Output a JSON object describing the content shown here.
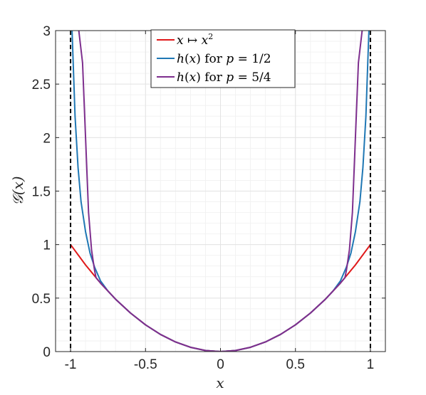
{
  "chart_data": {
    "type": "line",
    "xlabel": "x",
    "ylabel": "𝒢(x)",
    "xlim": [
      -1.1,
      1.1
    ],
    "ylim": [
      0,
      3
    ],
    "x_ticks": [
      -1,
      -0.5,
      0,
      0.5,
      1
    ],
    "x_tick_labels": [
      "-1",
      "-0.5",
      "0",
      "0.5",
      "1"
    ],
    "y_ticks": [
      0,
      0.5,
      1,
      1.5,
      2,
      2.5,
      3
    ],
    "y_tick_labels": [
      "0",
      "0.5",
      "1",
      "1.5",
      "2",
      "2.5",
      "3"
    ],
    "grid": true,
    "legend_position": "top-center",
    "vertical_lines": [
      {
        "x": -1,
        "style": "dashed",
        "color": "#000000"
      },
      {
        "x": 1,
        "style": "dashed",
        "color": "#000000"
      }
    ],
    "series": [
      {
        "name": "x ↦ x²",
        "legend_parts": [
          {
            "t": "x",
            "i": true
          },
          {
            "t": " ↦ ",
            "i": false
          },
          {
            "t": "x",
            "i": true
          },
          {
            "t": "2",
            "sup": true
          }
        ],
        "color": "#e0191a",
        "x": [
          -1,
          -0.9,
          -0.8,
          -0.7,
          -0.6,
          -0.5,
          -0.4,
          -0.3,
          -0.2,
          -0.1,
          0,
          0.1,
          0.2,
          0.3,
          0.4,
          0.5,
          0.6,
          0.7,
          0.8,
          0.9,
          1
        ],
        "y": [
          1,
          0.81,
          0.64,
          0.49,
          0.36,
          0.25,
          0.16,
          0.09,
          0.04,
          0.01,
          0,
          0.01,
          0.04,
          0.09,
          0.16,
          0.25,
          0.36,
          0.49,
          0.64,
          0.81,
          1
        ]
      },
      {
        "name": "h(x) for p = 1/2",
        "legend_parts": [
          {
            "t": "h",
            "i": true
          },
          {
            "t": "(",
            "i": false
          },
          {
            "t": "x",
            "i": true
          },
          {
            "t": ") for ",
            "i": false
          },
          {
            "t": "p",
            "i": true
          },
          {
            "t": " = 1/2",
            "i": false
          }
        ],
        "color": "#1f77b4",
        "x": [
          -0.99,
          -0.97,
          -0.95,
          -0.93,
          -0.9,
          -0.87,
          -0.84,
          -0.8,
          -0.75,
          -0.7,
          -0.6,
          -0.5,
          -0.4,
          -0.3,
          -0.2,
          -0.1,
          0,
          0.1,
          0.2,
          0.3,
          0.4,
          0.5,
          0.6,
          0.7,
          0.75,
          0.8,
          0.84,
          0.87,
          0.9,
          0.93,
          0.95,
          0.97,
          0.99
        ],
        "y": [
          3.0,
          2.2,
          1.72,
          1.4,
          1.12,
          0.92,
          0.79,
          0.66,
          0.565,
          0.49,
          0.36,
          0.25,
          0.16,
          0.09,
          0.04,
          0.01,
          0,
          0.01,
          0.04,
          0.09,
          0.16,
          0.25,
          0.36,
          0.49,
          0.565,
          0.66,
          0.79,
          0.92,
          1.12,
          1.4,
          1.72,
          2.2,
          3.0
        ]
      },
      {
        "name": "h(x) for p = 5/4",
        "legend_parts": [
          {
            "t": "h",
            "i": true
          },
          {
            "t": "(",
            "i": false
          },
          {
            "t": "x",
            "i": true
          },
          {
            "t": ") for ",
            "i": false
          },
          {
            "t": "p",
            "i": true
          },
          {
            "t": " = 5/4",
            "i": false
          }
        ],
        "color": "#7e2f8e",
        "x": [
          -0.945,
          -0.92,
          -0.9,
          -0.88,
          -0.86,
          -0.84,
          -0.83,
          -0.8,
          -0.7,
          -0.6,
          -0.5,
          -0.4,
          -0.3,
          -0.2,
          -0.1,
          0,
          0.1,
          0.2,
          0.3,
          0.4,
          0.5,
          0.6,
          0.7,
          0.8,
          0.83,
          0.84,
          0.86,
          0.88,
          0.9,
          0.92,
          0.945
        ],
        "y": [
          3.0,
          2.7,
          2.0,
          1.3,
          0.95,
          0.76,
          0.69,
          0.64,
          0.49,
          0.36,
          0.25,
          0.16,
          0.09,
          0.04,
          0.01,
          0,
          0.01,
          0.04,
          0.09,
          0.16,
          0.25,
          0.36,
          0.49,
          0.64,
          0.69,
          0.76,
          0.95,
          1.3,
          2.0,
          2.7,
          3.0
        ]
      }
    ]
  }
}
